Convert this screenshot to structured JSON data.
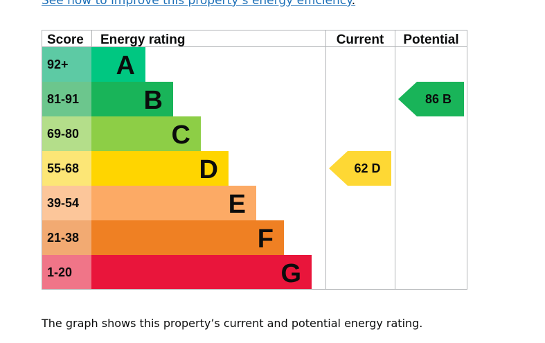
{
  "link_text": "See how to improve this property’s energy efficiency",
  "link_suffix": ".",
  "caption": "The graph shows this property’s current and potential energy rating.",
  "chart_data": {
    "type": "bar",
    "columns": {
      "score": "Score",
      "rating": "Energy rating",
      "current": "Current",
      "potential": "Potential"
    },
    "bands": [
      {
        "letter": "A",
        "range": "92+",
        "color": "#00c781",
        "score_color": "#5dcaa4"
      },
      {
        "letter": "B",
        "range": "81-91",
        "color": "#19b459",
        "score_color": "#6cc68d"
      },
      {
        "letter": "C",
        "range": "69-80",
        "color": "#8dce46",
        "score_color": "#b4de8a"
      },
      {
        "letter": "D",
        "range": "55-68",
        "color": "#ffd500",
        "score_color": "#fce676"
      },
      {
        "letter": "E",
        "range": "39-54",
        "color": "#fcaa65",
        "score_color": "#fcc69a"
      },
      {
        "letter": "F",
        "range": "21-38",
        "color": "#ef8023",
        "score_color": "#f2aa72"
      },
      {
        "letter": "G",
        "range": "1-20",
        "color": "#e9153b",
        "score_color": "#f07588"
      }
    ],
    "current": {
      "value": 62,
      "band": "D",
      "label": "62  D",
      "color": "#fed834"
    },
    "potential": {
      "value": 86,
      "band": "B",
      "label": "86  B",
      "color": "#19b459"
    }
  }
}
